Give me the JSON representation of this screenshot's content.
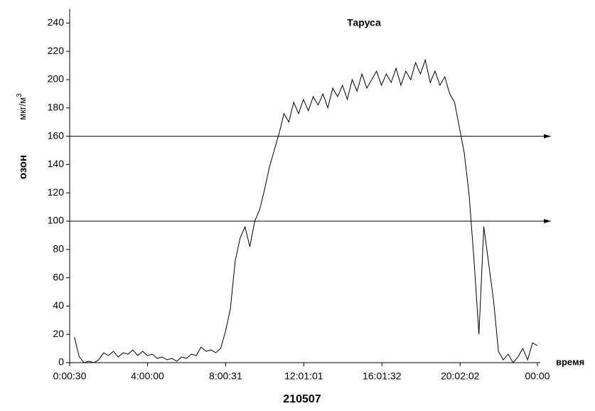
{
  "chart_data": {
    "type": "line",
    "title": "Таруса",
    "xlabel": "время",
    "xlabel_sub": "210507",
    "ylabel": "озон",
    "ylabel_unit": "мкг/м",
    "ylabel_unit_sup": "3",
    "x": [
      0.25,
      0.5,
      0.75,
      1,
      1.25,
      1.5,
      1.75,
      2,
      2.25,
      2.5,
      2.75,
      3,
      3.25,
      3.5,
      3.75,
      4,
      4.25,
      4.5,
      4.75,
      5,
      5.25,
      5.5,
      5.75,
      6,
      6.25,
      6.5,
      6.75,
      7,
      7.25,
      7.5,
      7.75,
      8,
      8.25,
      8.5,
      8.75,
      9,
      9.25,
      9.5,
      9.75,
      10,
      10.25,
      10.5,
      10.75,
      11,
      11.25,
      11.5,
      11.75,
      12,
      12.25,
      12.5,
      12.75,
      13,
      13.25,
      13.5,
      13.75,
      14,
      14.25,
      14.5,
      14.75,
      15,
      15.25,
      15.5,
      15.75,
      16,
      16.25,
      16.5,
      16.75,
      17,
      17.25,
      17.5,
      17.75,
      18,
      18.25,
      18.5,
      18.75,
      19,
      19.25,
      19.5,
      19.75,
      20,
      20.25,
      20.5,
      20.75,
      21,
      21.25,
      21.5,
      21.75,
      22,
      22.25,
      22.5,
      22.75,
      23,
      23.25,
      23.5,
      23.75,
      24
    ],
    "values": [
      18,
      4,
      0,
      1,
      0,
      2,
      7,
      5,
      8,
      4,
      7,
      6,
      9,
      5,
      8,
      5,
      6,
      3,
      4,
      2,
      3,
      1,
      4,
      3,
      6,
      5,
      11,
      8,
      9,
      7,
      10,
      22,
      38,
      72,
      88,
      96,
      82,
      100,
      108,
      122,
      138,
      150,
      162,
      176,
      170,
      184,
      176,
      186,
      178,
      188,
      182,
      190,
      180,
      194,
      188,
      196,
      186,
      200,
      192,
      204,
      194,
      200,
      206,
      196,
      204,
      198,
      208,
      196,
      206,
      200,
      212,
      204,
      214,
      198,
      206,
      196,
      202,
      190,
      184,
      166,
      148,
      118,
      72,
      20,
      96,
      70,
      44,
      8,
      2,
      6,
      0,
      4,
      10,
      2,
      14,
      12
    ],
    "color": "#000000",
    "hlines": [
      160,
      100
    ],
    "xlim": [
      0.0083,
      24
    ],
    "xticks": [
      {
        "value": 0.0083,
        "label": "0:00:30"
      },
      {
        "value": 4,
        "label": "4:00:00"
      },
      {
        "value": 8.0086,
        "label": "8:00:31"
      },
      {
        "value": 12.017,
        "label": "12:01:01"
      },
      {
        "value": 16.026,
        "label": "16:01:32"
      },
      {
        "value": 20.034,
        "label": "20:02:02"
      },
      {
        "value": 24,
        "label": "00:00"
      }
    ],
    "ylim": [
      0,
      250
    ],
    "yticks": [
      0,
      20,
      40,
      60,
      80,
      100,
      120,
      140,
      160,
      180,
      200,
      220,
      240
    ]
  }
}
